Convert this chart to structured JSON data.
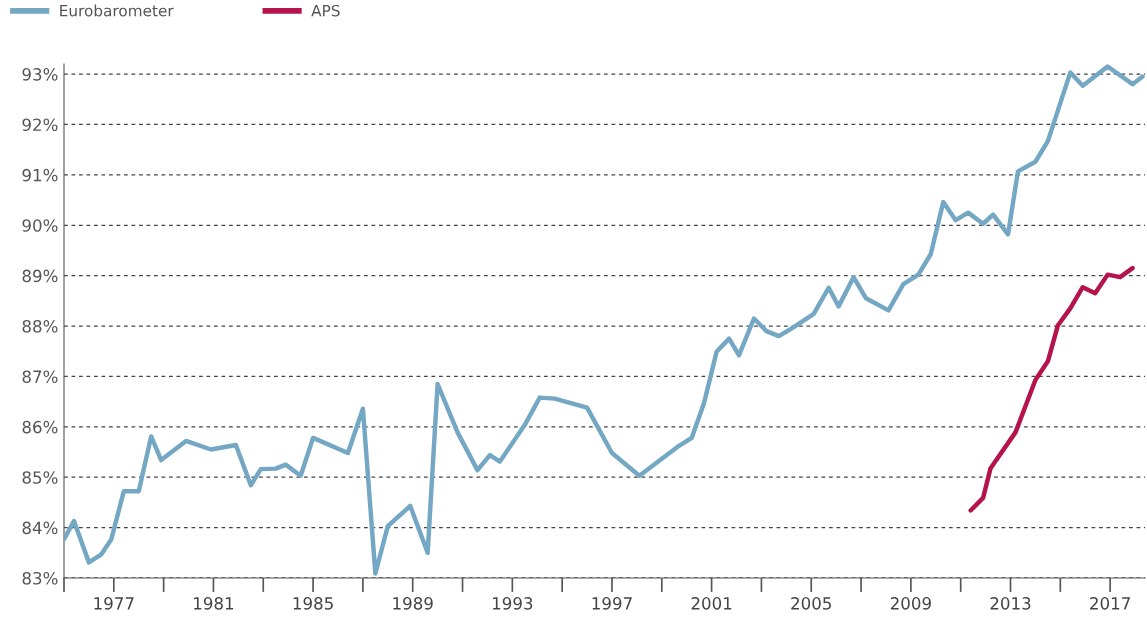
{
  "chart_data": {
    "type": "line",
    "series": [
      {
        "name": "Eurobarometer",
        "color": "#73a7c3",
        "x": [
          1975.0,
          1975.4,
          1976.0,
          1976.5,
          1976.9,
          1977.4,
          1978.0,
          1978.5,
          1978.9,
          1979.9,
          1980.9,
          1981.9,
          1982.5,
          1982.9,
          1983.5,
          1983.9,
          1984.5,
          1985.0,
          1986.4,
          1987.0,
          1987.5,
          1988.0,
          1988.9,
          1989.6,
          1990.0,
          1990.8,
          1991.6,
          1992.1,
          1992.5,
          1993.5,
          1994.1,
          1994.7,
          1996.0,
          1997.0,
          1998.1,
          1999.6,
          2000.2,
          2000.7,
          2001.2,
          2001.7,
          2002.1,
          2002.7,
          2003.2,
          2003.7,
          2004.3,
          2005.1,
          2005.7,
          2006.1,
          2006.7,
          2007.2,
          2008.1,
          2008.7,
          2009.3,
          2009.8,
          2010.3,
          2010.8,
          2011.3,
          2011.9,
          2012.3,
          2012.9,
          2013.3,
          2014.0,
          2014.5,
          2015.4,
          2015.9,
          2016.9,
          2017.9,
          2018.3
        ],
        "values": [
          83.77,
          84.13,
          83.31,
          83.47,
          83.77,
          84.72,
          84.72,
          85.81,
          85.34,
          85.72,
          85.55,
          85.64,
          84.84,
          85.16,
          85.17,
          85.25,
          85.03,
          85.78,
          85.48,
          86.36,
          83.09,
          84.03,
          84.43,
          83.5,
          86.85,
          85.89,
          85.14,
          85.44,
          85.31,
          86.04,
          86.58,
          86.56,
          86.38,
          85.48,
          85.03,
          85.59,
          85.78,
          86.48,
          87.49,
          87.75,
          87.42,
          88.15,
          87.9,
          87.8,
          87.98,
          88.24,
          88.76,
          88.39,
          88.97,
          88.55,
          88.31,
          88.83,
          89.02,
          89.43,
          90.46,
          90.1,
          90.25,
          90.03,
          90.21,
          89.82,
          91.07,
          91.26,
          91.67,
          93.03,
          92.77,
          93.15,
          92.8,
          92.95
        ]
      },
      {
        "name": "APS",
        "color": "#b5134b",
        "x": [
          2011.4,
          2011.9,
          2012.2,
          2013.2,
          2014.0,
          2014.5,
          2014.9,
          2015.4,
          2015.9,
          2016.4,
          2016.9,
          2017.4,
          2017.9
        ],
        "values": [
          84.34,
          84.59,
          85.18,
          85.89,
          86.93,
          87.3,
          88.01,
          88.35,
          88.77,
          88.65,
          89.02,
          88.97,
          89.15
        ]
      }
    ],
    "xlim": [
      1975,
      2018.4
    ],
    "xticks": [
      {
        "value": 1975,
        "label": null
      },
      1977,
      {
        "value": 1979,
        "label": null
      },
      1981,
      {
        "value": 1983,
        "label": null
      },
      1985,
      {
        "value": 1987,
        "label": null
      },
      1989,
      {
        "value": 1991,
        "label": null
      },
      1993,
      {
        "value": 1995,
        "label": null
      },
      1997,
      {
        "value": 1999,
        "label": null
      },
      2001,
      {
        "value": 2003,
        "label": null
      },
      2005,
      {
        "value": 2007,
        "label": null
      },
      2009,
      {
        "value": 2011,
        "label": null
      },
      2013,
      {
        "value": 2015,
        "label": null
      },
      2017
    ],
    "ylim": [
      83,
      93.2
    ],
    "yticks": [
      {
        "value": 83,
        "label": "83%"
      },
      {
        "value": 84,
        "label": "84%"
      },
      {
        "value": 85,
        "label": "85%"
      },
      {
        "value": 86,
        "label": "86%"
      },
      {
        "value": 87,
        "label": "87%"
      },
      {
        "value": 88,
        "label": "88%"
      },
      {
        "value": 89,
        "label": "89%"
      },
      {
        "value": 90,
        "label": "90%"
      },
      {
        "value": 91,
        "label": "91%"
      },
      {
        "value": 92,
        "label": "92%"
      },
      {
        "value": 93,
        "label": "93%"
      }
    ],
    "grid": "y",
    "legend": "top left",
    "marker": "none",
    "line_style": "solid"
  }
}
